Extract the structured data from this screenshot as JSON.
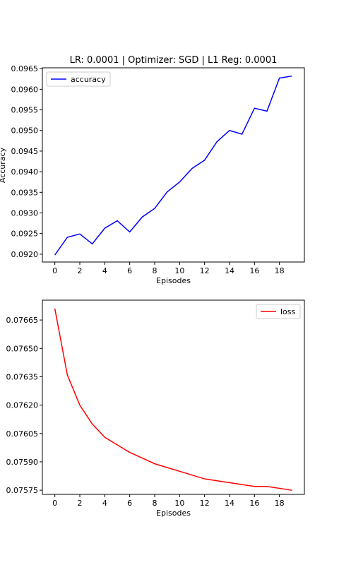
{
  "chart_data": [
    {
      "type": "line",
      "title": "LR: 0.0001 | Optimizer: SGD | L1 Reg: 0.0001",
      "xlabel": "Episodes",
      "ylabel": "Accuracy",
      "x": [
        0,
        1,
        2,
        3,
        4,
        5,
        6,
        7,
        8,
        9,
        10,
        11,
        12,
        13,
        14,
        15,
        16,
        17,
        18,
        19
      ],
      "xlim": [
        -1,
        20
      ],
      "ylim": [
        0.09181,
        0.09652
      ],
      "xticks": [
        "0",
        "2",
        "4",
        "6",
        "8",
        "10",
        "12",
        "14",
        "16",
        "18"
      ],
      "yticks": [
        "0.0920",
        "0.0925",
        "0.0930",
        "0.0935",
        "0.0940",
        "0.0945",
        "0.0950",
        "0.0955",
        "0.0960",
        "0.0965"
      ],
      "grid": false,
      "legend": "upper left",
      "series": [
        {
          "name": "accuracy",
          "color": "#0000ff",
          "values": [
            0.09198,
            0.09241,
            0.09249,
            0.09225,
            0.09263,
            0.09281,
            0.09254,
            0.0929,
            0.09311,
            0.09351,
            0.09375,
            0.09408,
            0.09428,
            0.09473,
            0.095,
            0.09491,
            0.09554,
            0.09547,
            0.09627,
            0.09632
          ]
        }
      ]
    },
    {
      "type": "line",
      "title": "",
      "xlabel": "Episodes",
      "ylabel": "",
      "x": [
        0,
        1,
        2,
        3,
        4,
        5,
        6,
        7,
        8,
        9,
        10,
        11,
        12,
        13,
        14,
        15,
        16,
        17,
        18,
        19
      ],
      "xlim": [
        -1,
        20
      ],
      "ylim": [
        0.075728,
        0.076755
      ],
      "xticks": [
        "0",
        "2",
        "4",
        "6",
        "8",
        "10",
        "12",
        "14",
        "16",
        "18"
      ],
      "yticks": [
        "0.07575",
        "0.07590",
        "0.07605",
        "0.07620",
        "0.07635",
        "0.07650",
        "0.07665"
      ],
      "grid": false,
      "legend": "upper right",
      "series": [
        {
          "name": "loss",
          "color": "#ff0000",
          "values": [
            0.07671,
            0.07636,
            0.0762,
            0.0761,
            0.07603,
            0.07599,
            0.07595,
            0.07592,
            0.07589,
            0.07587,
            0.07585,
            0.07583,
            0.07581,
            0.0758,
            0.07579,
            0.07578,
            0.07577,
            0.07577,
            0.07576,
            0.07575
          ]
        }
      ]
    }
  ]
}
